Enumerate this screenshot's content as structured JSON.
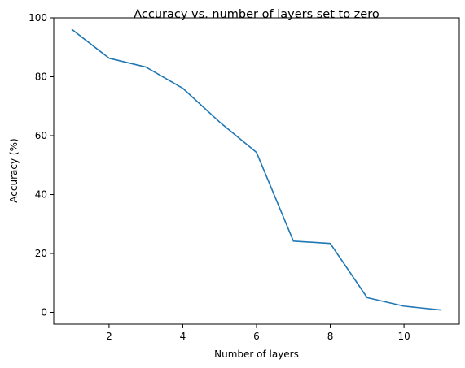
{
  "chart_data": {
    "type": "line",
    "title": "Accuracy vs. number of layers set to zero",
    "xlabel": "Number of layers",
    "ylabel": "Accuracy (%)",
    "xlim": [
      0.5,
      11.5
    ],
    "ylim": [
      -4,
      100
    ],
    "xticks": [
      2,
      4,
      6,
      8,
      10
    ],
    "yticks": [
      0,
      20,
      40,
      60,
      80,
      100
    ],
    "grid": false,
    "series": [
      {
        "color": "#1f77b4",
        "x": [
          1,
          2,
          3,
          4,
          5,
          6,
          7,
          8,
          9,
          10,
          11
        ],
        "y": [
          96,
          86.3,
          83.3,
          76.1,
          64.6,
          54.3,
          24.2,
          23.4,
          5.0,
          2.1,
          0.8
        ]
      }
    ]
  }
}
